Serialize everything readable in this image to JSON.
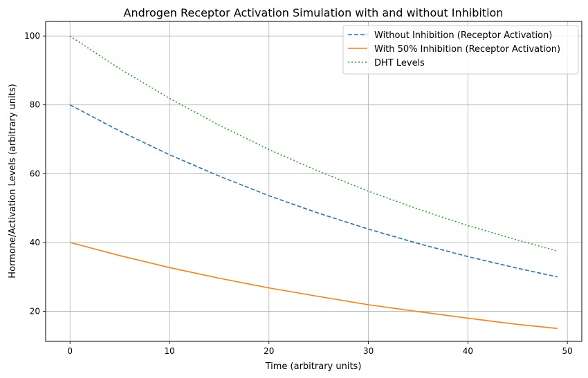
{
  "chart_data": {
    "type": "line",
    "title": "Androgen Receptor Activation Simulation with and without Inhibition",
    "xlabel": "Time (arbitrary units)",
    "ylabel": "Hormone/Activation Levels (arbitrary units)",
    "xlim": [
      -2.45,
      51.45
    ],
    "ylim": [
      11.25,
      104.25
    ],
    "xticks": [
      0,
      10,
      20,
      30,
      40,
      50
    ],
    "yticks": [
      20,
      40,
      60,
      80,
      100
    ],
    "grid": true,
    "legend_position": "top-right",
    "x": [
      0,
      5,
      10,
      15,
      20,
      25,
      30,
      35,
      40,
      45,
      49
    ],
    "series": [
      {
        "name": "Without Inhibition (Receptor Activation)",
        "color": "#1f77b4",
        "style": "dashed",
        "values": [
          80.0,
          72.4,
          65.5,
          59.3,
          53.6,
          48.5,
          43.9,
          39.7,
          35.9,
          32.5,
          30.0
        ]
      },
      {
        "name": "With 50% Inhibition (Receptor Activation)",
        "color": "#ff7f0e",
        "style": "solid",
        "values": [
          40.0,
          36.2,
          32.7,
          29.6,
          26.8,
          24.3,
          21.9,
          19.9,
          18.0,
          16.2,
          15.0
        ]
      },
      {
        "name": "DHT Levels",
        "color": "#2ca02c",
        "style": "dotted",
        "values": [
          100.0,
          90.5,
          81.9,
          74.1,
          67.0,
          60.7,
          54.9,
          49.7,
          44.9,
          40.7,
          37.5
        ]
      }
    ]
  }
}
